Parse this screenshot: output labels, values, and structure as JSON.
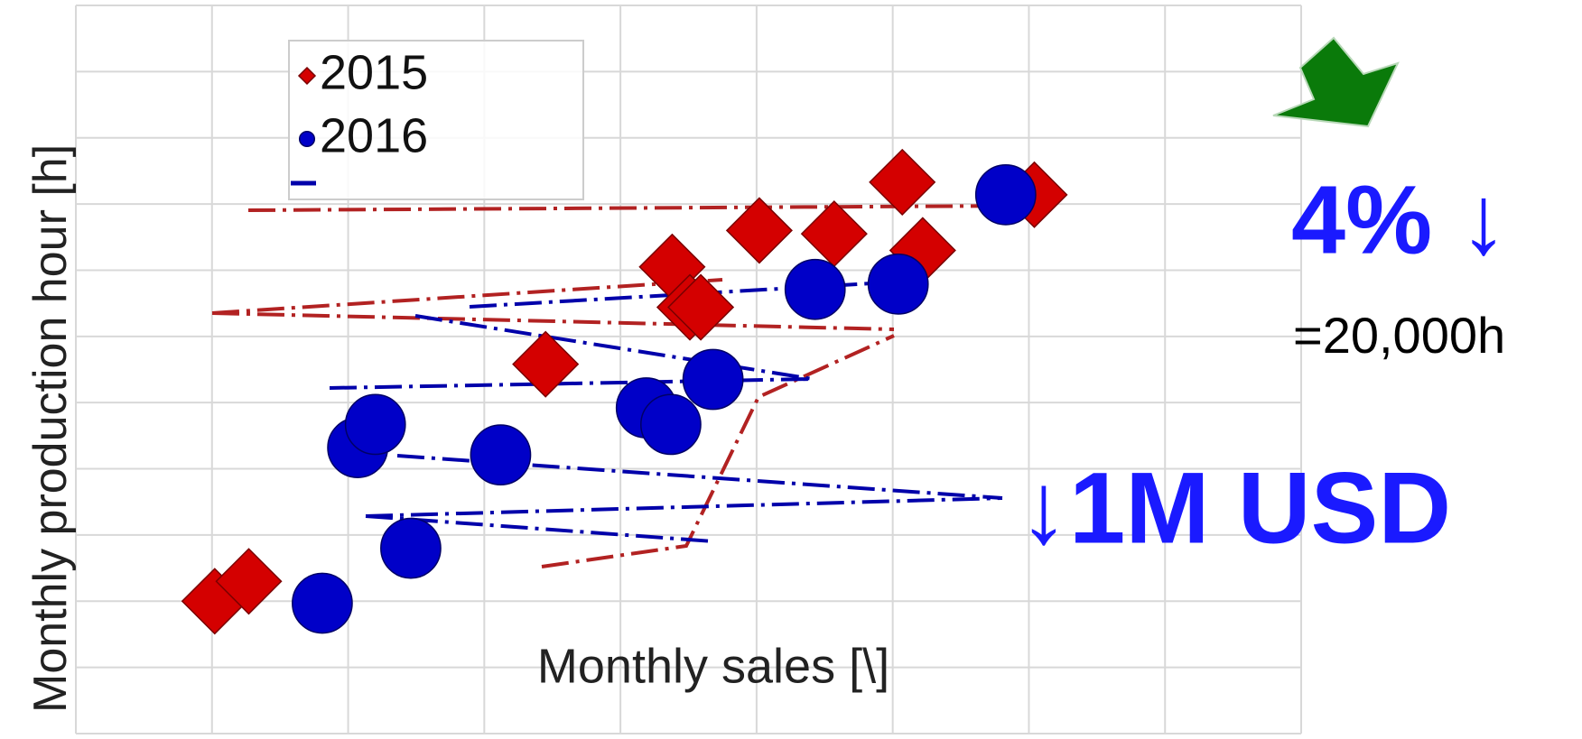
{
  "chart_data": {
    "type": "scatter",
    "xlabel": "Monthly sales [\\]",
    "ylabel": "Monthly production hour [h]",
    "xlim": [
      0,
      9
    ],
    "ylim": [
      0,
      11
    ],
    "xticks": [
      0,
      1,
      2,
      3,
      4,
      5,
      6,
      7,
      8,
      9
    ],
    "yticks": [
      0,
      1,
      2,
      3,
      4,
      5,
      6,
      7,
      8,
      9,
      10,
      11
    ],
    "grid": true,
    "legend": "upper left",
    "series": [
      {
        "name": "2015",
        "color": "#d40000",
        "marker": "diamond",
        "x": [
          1.02,
          1.27,
          3.45,
          4.38,
          4.51,
          4.59,
          5.02,
          5.57,
          6.07,
          6.22,
          7.04
        ],
        "y": [
          2.0,
          2.3,
          5.58,
          7.05,
          6.44,
          6.44,
          7.6,
          7.55,
          8.33,
          7.3,
          8.14
        ]
      },
      {
        "name": "2016",
        "color": "#0000c8",
        "marker": "circle",
        "x": [
          1.81,
          2.46,
          2.07,
          2.2,
          3.12,
          4.19,
          4.37,
          4.68,
          5.43,
          6.04,
          6.83
        ],
        "y": [
          1.97,
          2.8,
          4.32,
          4.67,
          4.21,
          4.92,
          4.67,
          5.35,
          6.71,
          6.79,
          8.14
        ]
      }
    ],
    "annotations": [
      "4% ↓",
      "=20,000h",
      "↓1M USD"
    ]
  }
}
